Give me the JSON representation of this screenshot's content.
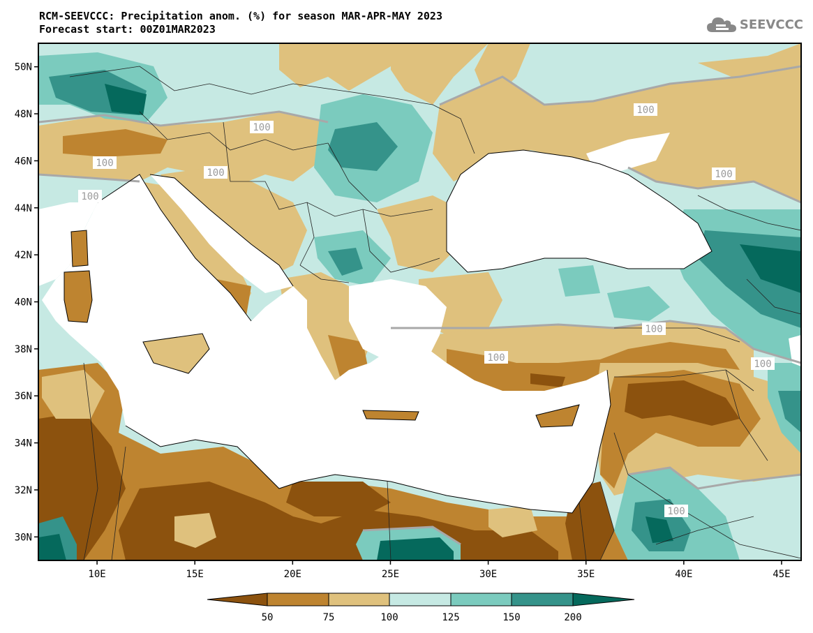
{
  "title": {
    "line1": "RCM-SEEVCCC: Precipitation anom. (%) for season MAR-APR-MAY 2023",
    "line2": "Forecast start: 00Z01MAR2023"
  },
  "logo": {
    "text": "SEEVCCC",
    "icon": "cloud-logo-icon"
  },
  "map": {
    "lon_range": [
      7,
      46
    ],
    "lat_range": [
      29,
      51
    ],
    "lat_ticks": [
      "50N",
      "48N",
      "46N",
      "44N",
      "42N",
      "40N",
      "38N",
      "36N",
      "34N",
      "32N",
      "30N"
    ],
    "lon_ticks": [
      "10E",
      "15E",
      "20E",
      "25E",
      "30E",
      "35E",
      "40E",
      "45E"
    ],
    "contour_label": "100",
    "colors": {
      "below_50": "#8c520e",
      "50_75": "#be8430",
      "75_100": "#dfc17d",
      "100_125": "#c6e9e3",
      "125_150": "#7bcbbe",
      "150_200": "#35938a",
      "above_200": "#05695c",
      "sea": "#ffffff"
    }
  },
  "colorbar": {
    "labels": [
      "50",
      "75",
      "100",
      "125",
      "150",
      "200"
    ]
  }
}
